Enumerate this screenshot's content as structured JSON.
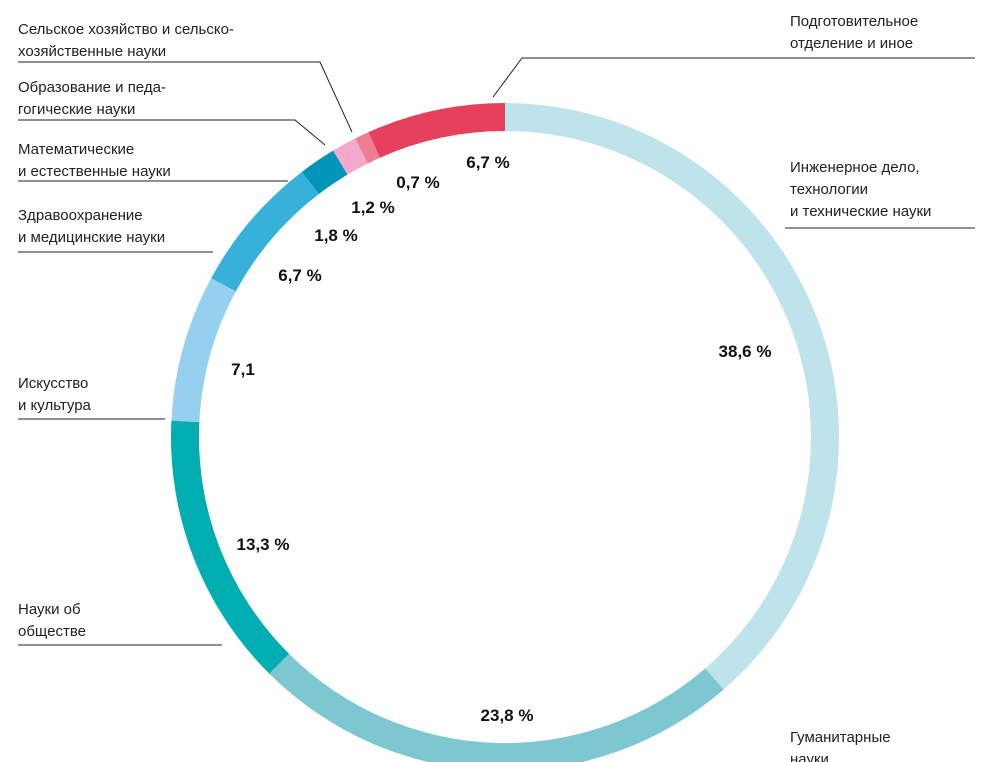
{
  "chart_data": {
    "type": "donut",
    "categories": [
      "Инженерное дело,\nтехнологии\nи технические науки",
      "Гуманитарные\nнауки",
      "Науки об\nобществе",
      "Искусство\nи культура",
      "Здравоохранение\nи медицинские науки",
      "Математические\nи естественные науки",
      "Образование и педа-\nгогические науки",
      "Сельское хозяйство и сельско-\nхозяйственные науки",
      "Подготовительное\nотделение и иное"
    ],
    "values": [
      38.6,
      23.8,
      13.3,
      7.1,
      6.7,
      1.8,
      1.2,
      0.7,
      6.7
    ],
    "value_labels": [
      "38,6 %",
      "23,8 %",
      "13,3 %",
      "7,1",
      "6,7 %",
      "1,8 %",
      "1,2 %",
      "0,7 %",
      "6,7 %"
    ],
    "colors": [
      "#bfe3ea",
      "#7dc8d0",
      "#00adb0",
      "#95d1ef",
      "#36b1d9",
      "#0095b9",
      "#f2a9cb",
      "#ee7d93",
      "#e5405e"
    ]
  }
}
